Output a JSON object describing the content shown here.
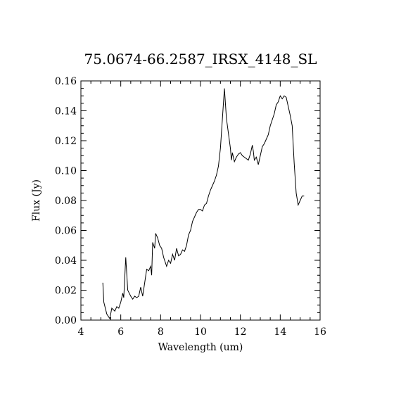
{
  "chart_data": {
    "type": "line",
    "title": "75.0674-66.2587_IRSX_4148_SL",
    "x_label": "Wavelength (um)",
    "y_label": "Flux (Jy)",
    "xlim": [
      4,
      16
    ],
    "ylim": [
      0,
      0.16
    ],
    "xticks": [
      4,
      6,
      8,
      10,
      12,
      14,
      16
    ],
    "yticks": [
      {
        "value": 0,
        "label": "0.00"
      },
      {
        "value": 0.02,
        "label": "0.02"
      },
      {
        "value": 0.04,
        "label": "0.04"
      },
      {
        "value": 0.06,
        "label": "0.06"
      },
      {
        "value": 0.08,
        "label": "0.08"
      },
      {
        "value": 0.1,
        "label": "0.10"
      },
      {
        "value": 0.12,
        "label": "0.12"
      },
      {
        "value": 0.14,
        "label": "0.14"
      },
      {
        "value": 0.16,
        "label": "0.16"
      }
    ],
    "color": "#000000",
    "x": [
      5.1,
      5.15,
      5.3,
      5.45,
      5.55,
      5.7,
      5.8,
      5.9,
      6.0,
      6.1,
      6.15,
      6.25,
      6.35,
      6.5,
      6.6,
      6.7,
      6.8,
      6.9,
      7.0,
      7.1,
      7.2,
      7.3,
      7.4,
      7.5,
      7.55,
      7.6,
      7.7,
      7.75,
      7.85,
      7.95,
      8.05,
      8.15,
      8.3,
      8.4,
      8.5,
      8.6,
      8.7,
      8.8,
      8.9,
      9.0,
      9.1,
      9.2,
      9.3,
      9.4,
      9.5,
      9.6,
      9.7,
      9.8,
      9.9,
      10.0,
      10.1,
      10.2,
      10.3,
      10.4,
      10.5,
      10.6,
      10.7,
      10.8,
      10.9,
      11.0,
      11.1,
      11.2,
      11.3,
      11.4,
      11.5,
      11.55,
      11.6,
      11.7,
      11.8,
      11.9,
      12.0,
      12.1,
      12.2,
      12.3,
      12.4,
      12.5,
      12.6,
      12.65,
      12.7,
      12.8,
      12.9,
      13.0,
      13.1,
      13.2,
      13.3,
      13.4,
      13.5,
      13.6,
      13.7,
      13.8,
      13.9,
      14.0,
      14.1,
      14.2,
      14.3,
      14.4,
      14.5,
      14.6,
      14.7,
      14.8,
      14.9,
      15.0,
      15.1,
      15.2
    ],
    "values": [
      0.025,
      0.012,
      0.004,
      0.001,
      0.008,
      0.006,
      0.009,
      0.008,
      0.012,
      0.018,
      0.015,
      0.042,
      0.02,
      0.016,
      0.014,
      0.016,
      0.015,
      0.016,
      0.022,
      0.016,
      0.025,
      0.034,
      0.033,
      0.036,
      0.03,
      0.052,
      0.048,
      0.058,
      0.055,
      0.05,
      0.048,
      0.042,
      0.036,
      0.04,
      0.038,
      0.044,
      0.04,
      0.048,
      0.043,
      0.044,
      0.047,
      0.046,
      0.05,
      0.057,
      0.06,
      0.066,
      0.069,
      0.072,
      0.074,
      0.074,
      0.073,
      0.077,
      0.078,
      0.083,
      0.087,
      0.09,
      0.093,
      0.097,
      0.103,
      0.115,
      0.135,
      0.155,
      0.135,
      0.125,
      0.115,
      0.107,
      0.112,
      0.106,
      0.109,
      0.111,
      0.112,
      0.11,
      0.109,
      0.108,
      0.107,
      0.111,
      0.117,
      0.113,
      0.107,
      0.109,
      0.104,
      0.11,
      0.116,
      0.118,
      0.121,
      0.124,
      0.13,
      0.134,
      0.138,
      0.144,
      0.146,
      0.15,
      0.148,
      0.15,
      0.149,
      0.143,
      0.137,
      0.13,
      0.105,
      0.085,
      0.077,
      0.08,
      0.083,
      0.083
    ]
  }
}
